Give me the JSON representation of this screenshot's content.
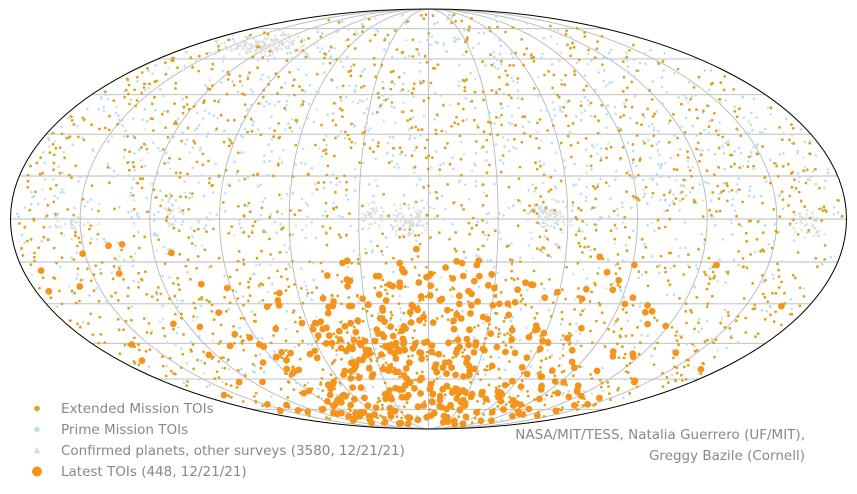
{
  "chart_data": {
    "type": "scatter",
    "projection": "mollweide",
    "grid": true,
    "legend_position": "bottom-left",
    "series": [
      {
        "key": "extended",
        "name": "Extended Mission TOIs",
        "color": "#e0a21c",
        "marker": "circle-small"
      },
      {
        "key": "prime",
        "name": "Prime Mission TOIs",
        "color": "#b9dff0",
        "marker": "circle-small"
      },
      {
        "key": "confirmed",
        "name": "Confirmed planets, other surveys (3580, 12/21/21)",
        "color": "#dcdcdc",
        "marker": "triangle"
      },
      {
        "key": "latest",
        "name": "Latest TOIs (448, 12/21/21)",
        "color": "#f5941d",
        "marker": "circle-large"
      }
    ],
    "longitude_gridlines_deg": [
      -150,
      -120,
      -90,
      -60,
      -30,
      0,
      30,
      60,
      90,
      120,
      150
    ],
    "latitude_gridlines_deg": [
      -75,
      -60,
      -45,
      -30,
      -15,
      0,
      15,
      30,
      45,
      60,
      75
    ]
  },
  "credit": {
    "line1": "NASA/MIT/TESS, Natalia Guerrero (UF/MIT),",
    "line2": "Greggy Bazile (Cornell)"
  }
}
